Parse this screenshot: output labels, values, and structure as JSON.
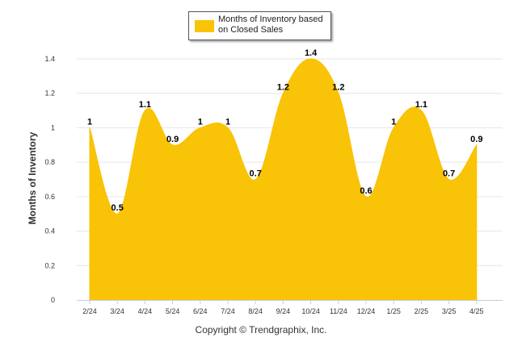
{
  "legend": {
    "label": "Months of Inventory based on Closed Sales"
  },
  "footer": {
    "copyright": "Copyright © Trendgraphix, Inc."
  },
  "chart_data": {
    "type": "area",
    "title": "",
    "xlabel": "",
    "ylabel": "Months of Inventory",
    "categories": [
      "2/24",
      "3/24",
      "4/24",
      "5/24",
      "6/24",
      "7/24",
      "8/24",
      "9/24",
      "10/24",
      "11/24",
      "12/24",
      "1/25",
      "2/25",
      "3/25",
      "4/25"
    ],
    "series": [
      {
        "name": "Months of Inventory based on Closed Sales",
        "values": [
          1,
          0.5,
          1.1,
          0.9,
          1,
          1,
          0.7,
          1.2,
          1.4,
          1.2,
          0.6,
          1,
          1.1,
          0.7,
          0.9
        ],
        "color": "#f9c307"
      }
    ],
    "data_labels": [
      "1",
      "0.5",
      "1.1",
      "0.9",
      "1",
      "1",
      "0.7",
      "1.2",
      "1.4",
      "1.2",
      "0.6",
      "1",
      "1.1",
      "0.7",
      "0.9"
    ],
    "yticks": [
      "0",
      "0.2",
      "0.4",
      "0.6",
      "0.8",
      "1",
      "1.2",
      "1.4"
    ],
    "ylim": [
      0,
      1.4
    ],
    "grid": true,
    "legend_position": "top-center"
  }
}
